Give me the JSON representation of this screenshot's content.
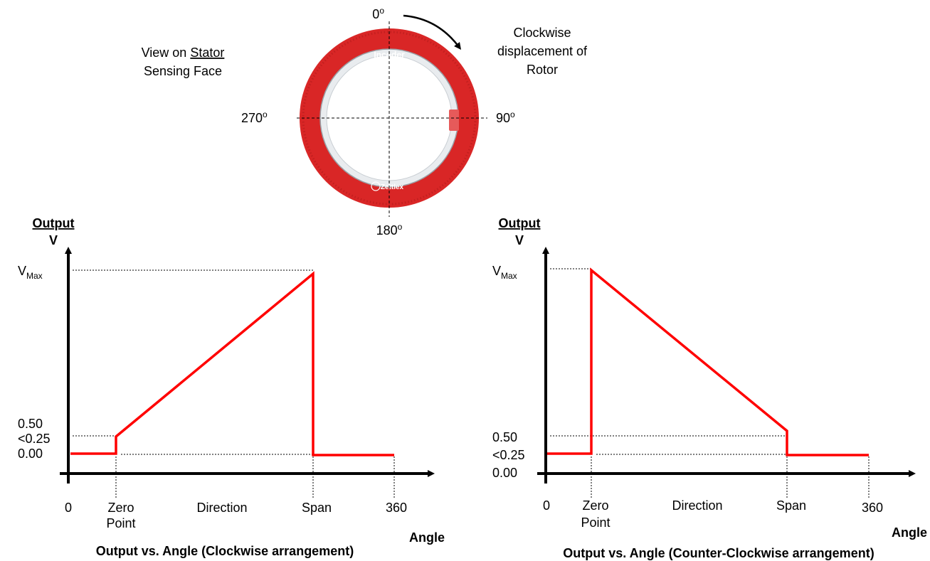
{
  "encoder": {
    "view_line1": "View on",
    "view_word": "Stator",
    "view_line2": "Sensing Face",
    "angle_0": "0",
    "angle_90": "90",
    "angle_180": "180",
    "angle_270": "270",
    "degree_mark": "o",
    "rotation_line1": "Clockwise",
    "rotation_line2": "displacement of",
    "rotation_line3": "Rotor",
    "brand_top": "Incoder",
    "brand_bottom": "Zettlex",
    "colors": {
      "ring": "#d92626",
      "inner": "#e9ecef"
    }
  },
  "chart_data": [
    {
      "type": "line",
      "title": "Output vs. Angle (Clockwise arrangement)",
      "ylabel_line1": "Output",
      "ylabel_line2": "V",
      "xlabel": "Angle",
      "y_ticks": [
        "0.50",
        "<0.25",
        "0.00"
      ],
      "vmax_main": "V",
      "vmax_sub": "Max",
      "x_ticks": [
        "0",
        "Zero",
        "Point",
        "Direction",
        "Span",
        "360"
      ],
      "series": [
        {
          "color": "#ff0000",
          "segments": [
            {
              "x": "0",
              "y": "<0.25"
            },
            {
              "x": "Zero Point",
              "y": "<0.25"
            },
            {
              "x": "Zero Point",
              "y": "0.50"
            },
            {
              "x": "Span",
              "y": "VMax"
            },
            {
              "x": "Span",
              "y": "<0.25"
            },
            {
              "x": "360",
              "y": "<0.25"
            }
          ]
        }
      ]
    },
    {
      "type": "line",
      "title": "Output vs. Angle (Counter-Clockwise arrangement)",
      "ylabel_line1": "Output",
      "ylabel_line2": "V",
      "xlabel": "Angle",
      "y_ticks": [
        "0.50",
        "<0.25",
        "0.00"
      ],
      "vmax_main": "V",
      "vmax_sub": "Max",
      "x_ticks": [
        "0",
        "Zero",
        "Point",
        "Direction",
        "Span",
        "360"
      ],
      "series": [
        {
          "color": "#ff0000",
          "segments": [
            {
              "x": "0",
              "y": "<0.25"
            },
            {
              "x": "Zero Point",
              "y": "<0.25"
            },
            {
              "x": "Zero Point",
              "y": "VMax"
            },
            {
              "x": "Span",
              "y": "0.50"
            },
            {
              "x": "Span",
              "y": "<0.25"
            },
            {
              "x": "360",
              "y": "<0.25"
            }
          ]
        }
      ]
    }
  ]
}
